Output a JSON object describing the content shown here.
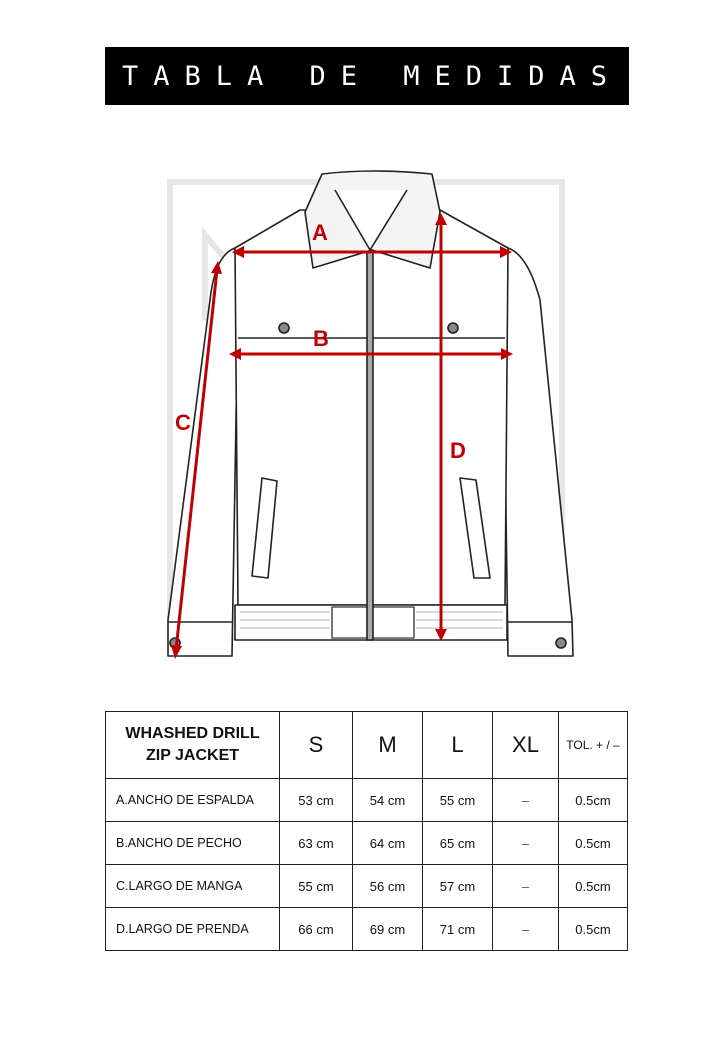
{
  "title": "TABLA DE MEDIDAS",
  "figure": {
    "watermark": "MO OB STYLE",
    "labels": {
      "a": "A",
      "b": "B",
      "c": "C",
      "d": "D"
    },
    "accent_color": "#c00000"
  },
  "table": {
    "product": [
      "WHASHED DRILL",
      "ZIP JACKET"
    ],
    "sizes": [
      "S",
      "M",
      "L",
      "XL"
    ],
    "tolerance_header": "TOL. + / –",
    "rows": [
      {
        "label": "A.ANCHO DE ESPALDA",
        "values": [
          "53 cm",
          "54 cm",
          "55 cm",
          "–"
        ],
        "tol": "0.5cm"
      },
      {
        "label": "B.ANCHO DE PECHO",
        "values": [
          "63 cm",
          "64 cm",
          "65 cm",
          "–"
        ],
        "tol": "0.5cm"
      },
      {
        "label": "C.LARGO DE MANGA",
        "values": [
          "55 cm",
          "56 cm",
          "57 cm",
          "–"
        ],
        "tol": "0.5cm"
      },
      {
        "label": "D.LARGO DE PRENDA",
        "values": [
          "66 cm",
          "69 cm",
          "71 cm",
          "–"
        ],
        "tol": "0.5cm"
      }
    ]
  }
}
